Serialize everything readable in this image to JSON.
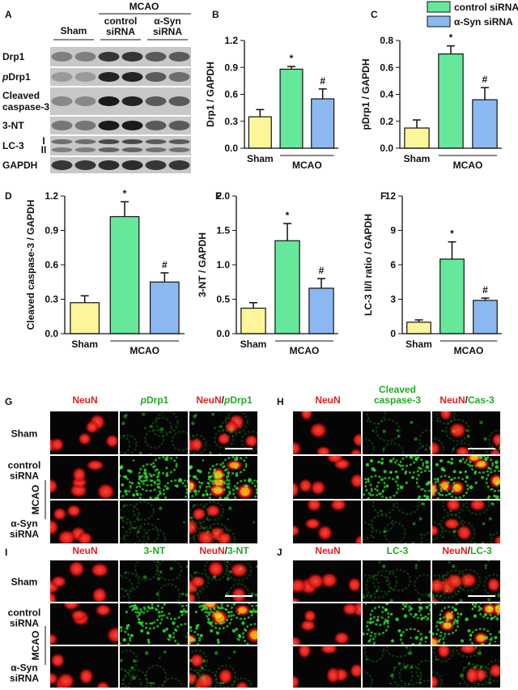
{
  "blot": {
    "letter": "A",
    "group": "MCAO",
    "lanes": [
      [
        "Sham"
      ],
      [
        "control",
        "siRNA"
      ],
      [
        "α-Syn",
        "siRNA"
      ]
    ],
    "rows": [
      [
        [
          "Drp1"
        ]
      ],
      [
        [
          {
            "text": "p",
            "italic": true
          },
          "Drp1"
        ]
      ],
      [
        [
          "Cleaved"
        ],
        [
          "caspase-3"
        ]
      ],
      [
        [
          "3-NT"
        ]
      ],
      [
        [
          "LC-3"
        ]
      ],
      [
        [
          "GAPDH"
        ]
      ]
    ],
    "lc3_forms": [
      "I",
      "II"
    ]
  },
  "legend": [
    {
      "name": "control siRNA",
      "color": "#66e89a"
    },
    {
      "name": "α-Syn siRNA",
      "color": "#8cb8f2"
    }
  ],
  "chart_data": [
    {
      "type": "bar",
      "letter": "B",
      "ylabel": "Drp1 / GAPDH",
      "categories": [
        "Sham",
        null,
        null
      ],
      "group_label": "MCAO",
      "values": [
        0.35,
        0.88,
        0.55
      ],
      "errors": [
        0.08,
        0.03,
        0.11
      ],
      "colors": [
        "#fdf59a",
        "#66e89a",
        "#8cb8f2"
      ],
      "annotations": [
        null,
        "*",
        "#"
      ],
      "ylim": [
        0,
        1.2
      ],
      "yticks": [
        {
          "value": 0,
          "label": "0.0"
        },
        0.3,
        0.6,
        0.9,
        1.2
      ]
    },
    {
      "type": "bar",
      "letter": "C",
      "ylabel": "pDrp1 / GAPDH",
      "categories": [
        "Sham",
        null,
        null
      ],
      "group_label": "MCAO",
      "values": [
        0.15,
        0.7,
        0.36
      ],
      "errors": [
        0.06,
        0.06,
        0.09
      ],
      "colors": [
        "#fdf59a",
        "#66e89a",
        "#8cb8f2"
      ],
      "annotations": [
        null,
        "*",
        "#"
      ],
      "ylim": [
        0,
        0.8
      ],
      "yticks": [
        {
          "value": 0,
          "label": "0.0"
        },
        0.2,
        0.4,
        0.6,
        0.8
      ]
    },
    {
      "type": "bar",
      "letter": "D",
      "ylabel": "Cleaved caspase-3 / GAPDH",
      "categories": [
        "Sham",
        null,
        null
      ],
      "group_label": "MCAO",
      "values": [
        0.27,
        1.02,
        0.45
      ],
      "errors": [
        0.06,
        0.13,
        0.08
      ],
      "colors": [
        "#fdf59a",
        "#66e89a",
        "#8cb8f2"
      ],
      "annotations": [
        null,
        "*",
        "#"
      ],
      "ylim": [
        0,
        1.2
      ],
      "yticks": [
        {
          "value": 0,
          "label": "0.0"
        },
        0.3,
        0.6,
        0.9,
        1.2
      ]
    },
    {
      "type": "bar",
      "letter": "E",
      "ylabel": "3-NT / GAPDH",
      "categories": [
        "Sham",
        null,
        null
      ],
      "group_label": "MCAO",
      "values": [
        0.37,
        1.35,
        0.66
      ],
      "errors": [
        0.08,
        0.25,
        0.14
      ],
      "colors": [
        "#fdf59a",
        "#66e89a",
        "#8cb8f2"
      ],
      "annotations": [
        null,
        "*",
        "#"
      ],
      "ylim": [
        0,
        2
      ],
      "yticks": [
        {
          "value": 0,
          "label": "0.0"
        },
        0.5,
        {
          "value": 1,
          "label": "1.0"
        },
        1.5,
        {
          "value": 2,
          "label": "2.0"
        }
      ]
    },
    {
      "type": "bar",
      "letter": "F",
      "ylabel": "LC-3 II/I ratio / GAPDH",
      "categories": [
        "Sham",
        null,
        null
      ],
      "group_label": "MCAO",
      "values": [
        1.0,
        6.5,
        2.9
      ],
      "errors": [
        0.2,
        1.5,
        0.2
      ],
      "colors": [
        "#fdf59a",
        "#66e89a",
        "#8cb8f2"
      ],
      "annotations": [
        null,
        "*",
        "#"
      ],
      "ylim": [
        0,
        12
      ],
      "yticks": [
        0,
        3,
        6,
        9,
        12
      ]
    }
  ],
  "micrographs": [
    {
      "letter": "G",
      "headers": [
        [
          [
            {
              "text": "NeuN",
              "color": "#e0201c"
            }
          ]
        ],
        [
          [
            {
              "text": "p",
              "italic": true,
              "color": "#22aa22"
            },
            {
              "text": "Drp1",
              "color": "#22aa22"
            }
          ]
        ],
        [
          [
            {
              "text": "NeuN",
              "color": "#e0201c"
            },
            {
              "text": "/",
              "color": "#222222"
            },
            {
              "text": "p",
              "italic": true,
              "color": "#22aa22"
            },
            {
              "text": "Drp1",
              "color": "#22aa22"
            }
          ]
        ]
      ],
      "rows": [
        [
          "Sham"
        ],
        [
          "control",
          "siRNA"
        ],
        [
          "α-Syn",
          "siRNA"
        ]
      ],
      "group": "MCAO"
    },
    {
      "letter": "H",
      "headers": [
        [
          [
            {
              "text": "NeuN",
              "color": "#e0201c"
            }
          ]
        ],
        [
          [
            {
              "text": "Cleaved",
              "color": "#22aa22"
            }
          ],
          [
            {
              "text": "caspase-3",
              "color": "#22aa22"
            }
          ]
        ],
        [
          [
            {
              "text": "NeuN",
              "color": "#e0201c"
            },
            {
              "text": "/",
              "color": "#222222"
            },
            {
              "text": "Cas-3",
              "color": "#22aa22"
            }
          ]
        ]
      ]
    },
    {
      "letter": "I",
      "headers": [
        [
          [
            {
              "text": "NeuN",
              "color": "#e0201c"
            }
          ]
        ],
        [
          [
            {
              "text": "3-NT",
              "color": "#22aa22"
            }
          ]
        ],
        [
          [
            {
              "text": "NeuN",
              "color": "#e0201c"
            },
            {
              "text": "/",
              "color": "#222222"
            },
            {
              "text": "3-NT",
              "color": "#22aa22"
            }
          ]
        ]
      ],
      "rows": [
        [
          "Sham"
        ],
        [
          "control",
          "siRNA"
        ],
        [
          "α-Syn",
          "siRNA"
        ]
      ],
      "group": "MCAO"
    },
    {
      "letter": "J",
      "headers": [
        [
          [
            {
              "text": "NeuN",
              "color": "#e0201c"
            }
          ]
        ],
        [
          [
            {
              "text": "LC-3",
              "color": "#22aa22"
            }
          ]
        ],
        [
          [
            {
              "text": "NeuN",
              "color": "#e0201c"
            },
            {
              "text": "/",
              "color": "#222222"
            },
            {
              "text": "LC-3",
              "color": "#22aa22"
            }
          ]
        ]
      ]
    }
  ]
}
